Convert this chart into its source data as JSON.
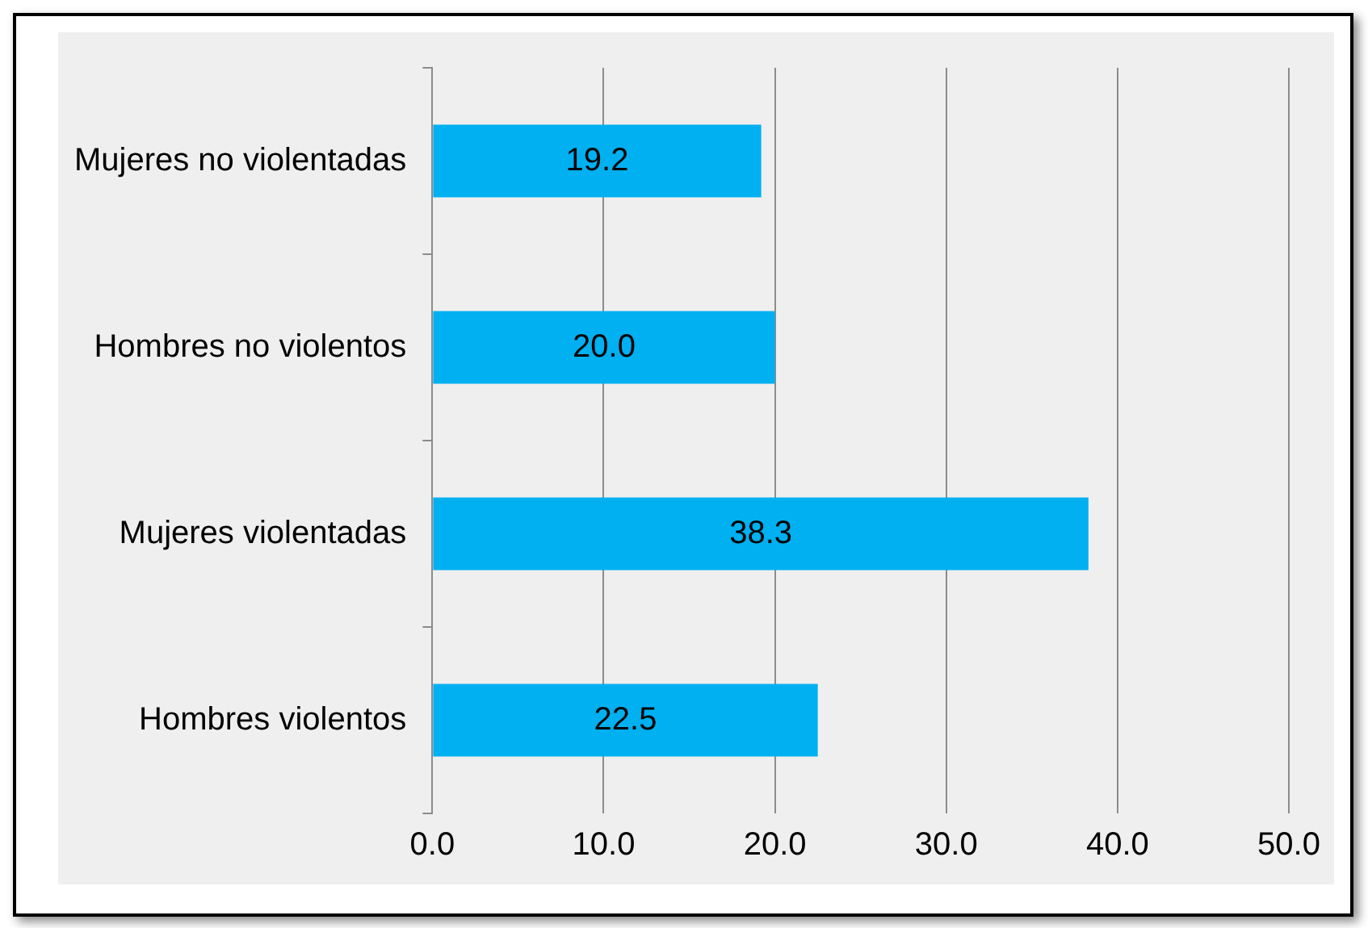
{
  "chart_data": {
    "type": "bar",
    "orientation": "horizontal",
    "categories": [
      "Mujeres no violentadas",
      "Hombres no violentos",
      "Mujeres violentadas",
      "Hombres violentos"
    ],
    "values": [
      19.2,
      20.0,
      38.3,
      22.5
    ],
    "value_labels": [
      "19.2",
      "20.0",
      "38.3",
      "22.5"
    ],
    "color": "#00b0f0",
    "xlim": [
      0,
      50
    ],
    "xticks": [
      {
        "value": 0,
        "label": "0.0"
      },
      {
        "value": 10,
        "label": "10.0"
      },
      {
        "value": 20,
        "label": "20.0"
      },
      {
        "value": 30,
        "label": "30.0"
      },
      {
        "value": 40,
        "label": "40.0"
      },
      {
        "value": 50,
        "label": "50.0"
      }
    ],
    "grid": "x",
    "legend": false
  }
}
